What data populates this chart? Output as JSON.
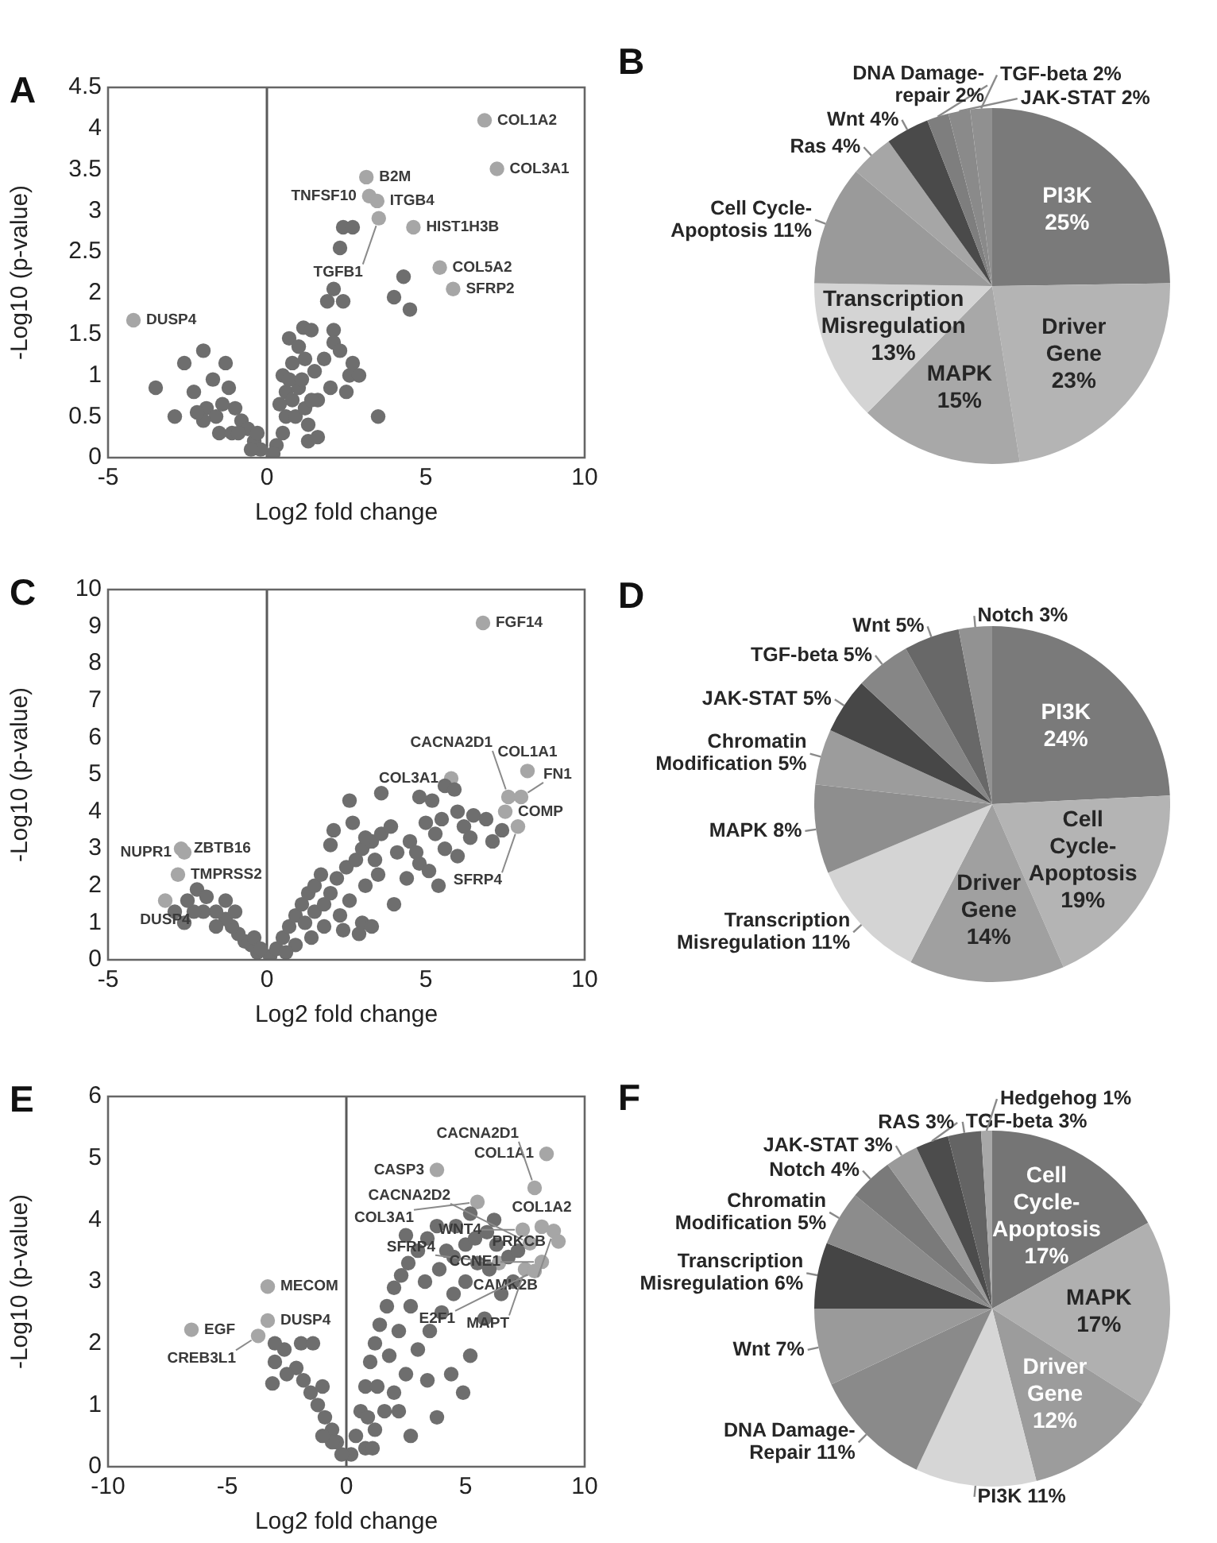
{
  "chart_data": [
    {
      "type": "scatter",
      "title": "A",
      "xlabel": "Log2 fold change",
      "ylabel": "-Log10 (p-value)",
      "xlim": [
        -5,
        10
      ],
      "xticks": [
        -5,
        0,
        5,
        10
      ],
      "ylim": [
        0,
        4.5
      ],
      "yticks": [
        0,
        0.5,
        1,
        1.5,
        2,
        2.5,
        3,
        3.5,
        4,
        4.5
      ],
      "marker": "circle",
      "ref_lines": [
        {
          "axis": "x",
          "value": 0,
          "color": "#5a5a5a"
        }
      ],
      "series": [
        {
          "color": "#6e6e6e",
          "x": [
            2.4,
            2.7,
            2.3,
            2.1,
            1.9,
            2.4,
            4.3,
            4.0,
            4.5,
            1.15,
            1.4,
            2.1,
            2.1,
            0.7,
            1.0,
            0.8,
            2.6,
            2.7,
            2.9,
            2.5,
            2.3,
            1.2,
            1.5,
            1.8,
            0.5,
            0.6,
            0.8,
            1.0,
            0.6,
            0.9,
            1.2,
            1.6,
            1.3,
            0.5,
            0.3,
            0.2,
            1.3,
            1.6,
            3.5,
            1.4,
            0.4,
            0.7,
            1.1,
            2.0,
            -3.5,
            -2.9,
            -2.6,
            -2.0,
            -1.3,
            -2.3,
            -1.9,
            -1.6,
            -1.2,
            -1.0,
            -0.8,
            -0.6,
            -1.5,
            -1.1,
            -0.4,
            -0.2,
            -2.0,
            -1.7,
            -0.9,
            -0.5,
            -2.2,
            -1.4,
            -0.3
          ],
          "values": [
            2.8,
            2.8,
            2.55,
            2.05,
            1.9,
            1.9,
            2.2,
            1.95,
            1.8,
            1.58,
            1.55,
            1.55,
            1.4,
            1.45,
            1.35,
            1.15,
            1.0,
            1.15,
            1.0,
            0.8,
            1.3,
            1.2,
            1.05,
            1.2,
            1.0,
            0.8,
            0.7,
            0.85,
            0.5,
            0.5,
            0.6,
            0.7,
            0.4,
            0.3,
            0.15,
            0.05,
            0.2,
            0.25,
            0.5,
            0.7,
            0.65,
            0.95,
            0.95,
            0.85,
            0.85,
            0.5,
            1.15,
            1.3,
            1.15,
            0.8,
            0.6,
            0.5,
            0.85,
            0.6,
            0.45,
            0.35,
            0.3,
            0.3,
            0.2,
            0.1,
            0.45,
            0.95,
            0.3,
            0.1,
            0.55,
            0.65,
            0.3
          ]
        },
        {
          "color": "#a6a6a6",
          "x": [
            6.85,
            7.24,
            3.13,
            3.22,
            3.47,
            3.52,
            4.61,
            5.44,
            5.86,
            -4.2
          ],
          "values": [
            4.1,
            3.51,
            3.41,
            3.18,
            3.12,
            2.91,
            2.8,
            2.31,
            2.05,
            1.67
          ]
        }
      ],
      "annotations": [
        {
          "text": "COL1A2",
          "x": 6.85,
          "y": 4.1
        },
        {
          "text": "COL3A1",
          "x": 7.24,
          "y": 3.51
        },
        {
          "text": "B2M",
          "x": 3.13,
          "y": 3.41
        },
        {
          "text": "TNFSF10",
          "x": 3.22,
          "y": 3.18
        },
        {
          "text": "ITGB4",
          "x": 3.47,
          "y": 3.12
        },
        {
          "text": "TGFB1",
          "x": 3.52,
          "y": 2.91
        },
        {
          "text": "HIST1H3B",
          "x": 4.61,
          "y": 2.8
        },
        {
          "text": "COL5A2",
          "x": 5.44,
          "y": 2.31
        },
        {
          "text": "SFRP2",
          "x": 5.86,
          "y": 2.05
        },
        {
          "text": "DUSP4",
          "x": -4.2,
          "y": 1.67
        }
      ]
    },
    {
      "type": "pie",
      "title": "B",
      "categories": [
        "PI3K",
        "Driver Gene",
        "MAPK",
        "Transcription Misregulation",
        "Cell Cycle-Apoptosis",
        "Ras",
        "Wnt",
        "DNA Damage-repair",
        "JAK-STAT",
        "TGF-beta"
      ],
      "values": [
        25,
        23,
        15,
        13,
        11,
        4,
        4,
        2,
        2,
        2
      ],
      "value_labels": [
        "25%",
        "23%",
        "15%",
        "13%",
        "11%",
        "4%",
        "4%",
        "2%",
        "2%",
        "2%"
      ],
      "colors": [
        "#7a7a7a",
        "#b4b4b4",
        "#a8a8a8",
        "#d4d4d4",
        "#9a9a9a",
        "#a6a6a6",
        "#4a4a4a",
        "#7e7e7e",
        "#8a8a8a",
        "#909090"
      ]
    },
    {
      "type": "scatter",
      "title": "C",
      "xlabel": "Log2 fold change",
      "ylabel": "-Log10 (p-value)",
      "xlim": [
        -5,
        10
      ],
      "xticks": [
        -5,
        0,
        5,
        10
      ],
      "ylim": [
        0,
        10
      ],
      "yticks": [
        0,
        1,
        2,
        3,
        4,
        5,
        6,
        7,
        8,
        9,
        10
      ],
      "marker": "circle",
      "ref_lines": [
        {
          "axis": "x",
          "value": 0,
          "color": "#5a5a5a"
        }
      ],
      "series": [
        {
          "color": "#6e6e6e",
          "x": [
            0.1,
            0.3,
            0.5,
            0.7,
            0.9,
            1.1,
            1.3,
            1.5,
            1.2,
            1.5,
            1.8,
            2.0,
            2.2,
            2.5,
            2.8,
            3.0,
            3.3,
            3.6,
            3.9,
            2.3,
            2.6,
            3.1,
            3.5,
            3.0,
            3.3,
            2.9,
            2.0,
            2.1,
            2.7,
            2.6,
            3.6,
            3.1,
            4.1,
            4.5,
            4.8,
            5.1,
            5.4,
            5.3,
            5.6,
            5.0,
            5.2,
            5.6,
            5.9,
            6.0,
            6.2,
            6.4,
            6.0,
            6.5,
            6.9,
            7.1,
            7.4,
            4.8,
            5.5,
            4.4,
            4.0,
            4.7,
            3.4,
            1.7,
            0.9,
            0.6,
            1.4,
            1.8,
            2.4,
            -0.3,
            -0.5,
            -0.7,
            -0.9,
            -1.1,
            -1.3,
            -1.6,
            -1.3,
            -2.0,
            -2.3,
            -2.2,
            -1.9,
            -2.6,
            -2.9,
            -2.5,
            -1.6,
            -1.0,
            -0.4,
            -0.2
          ],
          "values": [
            0.1,
            0.3,
            0.6,
            0.9,
            1.2,
            1.5,
            1.8,
            2.0,
            1.0,
            1.3,
            1.5,
            1.8,
            2.2,
            2.5,
            2.7,
            3.0,
            3.2,
            3.4,
            3.6,
            1.2,
            1.6,
            2.0,
            2.3,
            1.0,
            0.9,
            0.7,
            3.1,
            3.5,
            3.7,
            4.3,
            4.5,
            3.3,
            2.9,
            3.2,
            2.6,
            2.4,
            2.0,
            3.4,
            3.0,
            3.7,
            4.3,
            4.7,
            4.6,
            4.0,
            3.6,
            3.3,
            2.8,
            3.9,
            3.8,
            3.2,
            3.5,
            4.4,
            3.8,
            2.2,
            1.5,
            2.9,
            2.7,
            2.3,
            0.4,
            0.2,
            0.6,
            0.9,
            0.8,
            0.2,
            0.4,
            0.5,
            0.7,
            0.9,
            1.1,
            1.3,
            1.6,
            1.3,
            1.3,
            1.9,
            1.7,
            1.0,
            1.3,
            1.6,
            0.9,
            1.3,
            0.6,
            0.3
          ]
        },
        {
          "color": "#a6a6a6",
          "x": [
            6.8,
            7.6,
            5.8,
            8.2,
            7.5,
            8.0,
            7.9,
            -2.7,
            -2.6,
            -2.8,
            -3.2
          ],
          "values": [
            9.1,
            4.4,
            4.9,
            5.1,
            4.0,
            4.4,
            3.6,
            3.0,
            2.9,
            2.3,
            1.6
          ]
        }
      ],
      "annotations": [
        {
          "text": "FGF14",
          "x": 6.8,
          "y": 9.1
        },
        {
          "text": "CACNA2D1",
          "x": 7.6,
          "y": 4.4
        },
        {
          "text": "COL3A1",
          "x": 5.8,
          "y": 4.9
        },
        {
          "text": "COL1A1",
          "x": 8.2,
          "y": 5.1
        },
        {
          "text": "COMP",
          "x": 7.5,
          "y": 4.0
        },
        {
          "text": "FN1",
          "x": 8.0,
          "y": 4.4
        },
        {
          "text": "SFRP4",
          "x": 7.9,
          "y": 3.6
        },
        {
          "text": "ZBTB16",
          "x": -2.7,
          "y": 3.0
        },
        {
          "text": "NUPR1",
          "x": -2.6,
          "y": 2.9
        },
        {
          "text": "TMPRSS2",
          "x": -2.8,
          "y": 2.3
        },
        {
          "text": "DUSP4",
          "x": -3.2,
          "y": 1.6
        }
      ]
    },
    {
      "type": "pie",
      "title": "D",
      "categories": [
        "PI3K",
        "Cell Cycle-Apoptosis",
        "Driver Gene",
        "Transcription Misregulation",
        "MAPK",
        "Chromatin Modification",
        "JAK-STAT",
        "TGF-beta",
        "Wnt",
        "Notch"
      ],
      "values": [
        24,
        19,
        14,
        11,
        8,
        5,
        5,
        5,
        5,
        3
      ],
      "value_labels": [
        "24%",
        "19%",
        "14%",
        "11%",
        "8%",
        "5%",
        "5%",
        "5%",
        "5%",
        "3%"
      ],
      "colors": [
        "#7a7a7a",
        "#b4b4b4",
        "#a0a0a0",
        "#d4d4d4",
        "#8e8e8e",
        "#9c9c9c",
        "#474747",
        "#868686",
        "#686868",
        "#929292"
      ]
    },
    {
      "type": "scatter",
      "title": "E",
      "xlabel": "Log2 fold change",
      "ylabel": "-Log10 (p-value)",
      "xlim": [
        -10,
        10
      ],
      "xticks": [
        -10,
        -5,
        0,
        5,
        10
      ],
      "ylim": [
        0,
        6
      ],
      "yticks": [
        0,
        1,
        2,
        3,
        4,
        5,
        6
      ],
      "marker": "circle",
      "ref_lines": [
        {
          "axis": "x",
          "value": 0,
          "color": "#5a5a5a"
        }
      ],
      "series": [
        {
          "color": "#6e6e6e",
          "x": [
            0.2,
            0.4,
            0.6,
            0.8,
            1.0,
            1.2,
            1.4,
            1.7,
            2.0,
            2.3,
            2.6,
            3.0,
            3.4,
            3.8,
            4.2,
            4.6,
            5.0,
            5.4,
            5.9,
            6.3,
            6.8,
            7.2,
            5.5,
            6.0,
            5.0,
            4.5,
            4.0,
            3.5,
            3.0,
            2.5,
            2.0,
            1.6,
            1.2,
            0.8,
            0.9,
            1.3,
            1.8,
            2.2,
            2.7,
            3.3,
            3.9,
            4.5,
            5.2,
            6.2,
            2.5,
            4.4,
            4.9,
            5.2,
            3.8,
            2.7,
            1.1,
            2.2,
            3.4,
            6.5,
            7.0,
            5.8,
            -0.2,
            -0.4,
            -0.6,
            -0.9,
            -1.2,
            -1.5,
            -1.8,
            -2.1,
            -2.5,
            -3.0,
            -3.1,
            -2.6,
            -1.9,
            -1.4,
            -3.0,
            -1.0,
            -0.6,
            -1.0
          ],
          "values": [
            0.2,
            0.5,
            0.9,
            1.3,
            1.7,
            2.0,
            2.3,
            2.6,
            2.9,
            3.1,
            3.3,
            3.5,
            3.7,
            3.9,
            3.5,
            3.9,
            3.6,
            3.7,
            3.8,
            3.6,
            3.4,
            3.5,
            3.3,
            3.2,
            3.0,
            2.8,
            2.5,
            2.2,
            1.9,
            1.5,
            1.2,
            0.9,
            0.6,
            0.3,
            0.8,
            1.3,
            1.8,
            2.2,
            2.6,
            3.0,
            3.2,
            3.4,
            4.1,
            4.0,
            3.75,
            1.5,
            1.2,
            1.8,
            0.8,
            0.5,
            0.3,
            0.9,
            1.4,
            2.8,
            3.0,
            2.4,
            0.2,
            0.4,
            0.6,
            0.8,
            1.0,
            1.2,
            1.4,
            1.6,
            1.5,
            1.7,
            1.35,
            1.9,
            2.0,
            2.0,
            2.0,
            1.3,
            0.4,
            0.5
          ]
        },
        {
          "color": "#a6a6a6",
          "x": [
            8.4,
            7.7,
            3.8,
            8.2,
            7.9,
            5.5,
            8.7,
            7.4,
            6.4,
            7.5,
            8.9,
            7.9,
            8.2,
            -3.3,
            -6.5,
            -3.3,
            -3.7
          ],
          "values": [
            5.07,
            3.62,
            4.81,
            3.89,
            4.52,
            4.29,
            3.82,
            3.84,
            3.3,
            3.2,
            3.65,
            3.17,
            3.32,
            2.92,
            2.22,
            2.37,
            2.12
          ]
        }
      ],
      "annotations": [
        {
          "text": "COL1A1",
          "x": 8.4,
          "y": 5.07
        },
        {
          "text": "CACNA2D2",
          "x": 7.7,
          "y": 3.62
        },
        {
          "text": "CASP3",
          "x": 3.8,
          "y": 4.81
        },
        {
          "text": "COL1A2",
          "x": 8.2,
          "y": 3.89
        },
        {
          "text": "CACNA2D1",
          "x": 7.9,
          "y": 4.52
        },
        {
          "text": "COL3A1",
          "x": 5.5,
          "y": 4.29
        },
        {
          "text": "CAMK2B",
          "x": 8.7,
          "y": 3.82
        },
        {
          "text": "WNT4",
          "x": 7.4,
          "y": 3.84
        },
        {
          "text": "SFRP4",
          "x": 6.4,
          "y": 3.3
        },
        {
          "text": "MAPT",
          "x": 7.5,
          "y": 3.2
        },
        {
          "text": "PRKCB",
          "x": 8.9,
          "y": 3.65
        },
        {
          "text": "E2F1",
          "x": 7.9,
          "y": 3.17
        },
        {
          "text": "CCNE1",
          "x": 8.2,
          "y": 3.32
        },
        {
          "text": "MECOM",
          "x": -3.3,
          "y": 2.92
        },
        {
          "text": "EGF",
          "x": -6.5,
          "y": 2.22
        },
        {
          "text": "DUSP4",
          "x": -3.3,
          "y": 2.37
        },
        {
          "text": "CREB3L1",
          "x": -3.7,
          "y": 2.12
        }
      ]
    },
    {
      "type": "pie",
      "title": "F",
      "categories": [
        "Cell Cycle-Apoptosis",
        "MAPK",
        "Driver Gene",
        "PI3K",
        "DNA Damage-Repair",
        "Wnt",
        "Transcription Misregulation",
        "Chromatin Modification",
        "Notch",
        "JAK-STAT",
        "RAS",
        "TGF-beta",
        "Hedgehog"
      ],
      "values": [
        17,
        17,
        12,
        11,
        11,
        7,
        6,
        5,
        4,
        3,
        3,
        3,
        1
      ],
      "value_labels": [
        "17%",
        "17%",
        "12%",
        "11%",
        "11%",
        "7%",
        "6%",
        "5%",
        "4%",
        "3%",
        "3%",
        "3%",
        "1%"
      ],
      "colors": [
        "#757575",
        "#b0b0b0",
        "#9c9c9c",
        "#d6d6d6",
        "#8a8a8a",
        "#9a9a9a",
        "#454545",
        "#8c8c8c",
        "#7a7a7a",
        "#9a9a9a",
        "#4c4c4c",
        "#646464",
        "#a8a8a8"
      ]
    }
  ]
}
